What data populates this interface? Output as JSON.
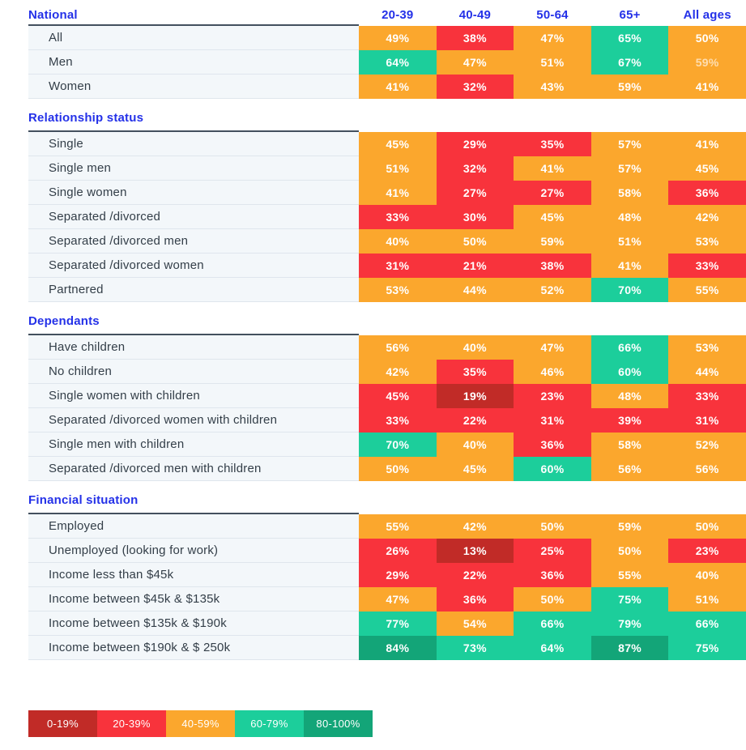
{
  "chart_data": {
    "type": "heatmap",
    "columns": [
      "20-39",
      "40-49",
      "50-64",
      "65+",
      "All ages"
    ],
    "value_unit": "%",
    "bands": [
      {
        "label": "0-19%",
        "max": 19,
        "color": "#C12B27"
      },
      {
        "label": "20-39%",
        "max": 39,
        "color": "#F8333C"
      },
      {
        "label": "40-59%",
        "max": 59,
        "color": "#FBA72D"
      },
      {
        "label": "60-79%",
        "max": 79,
        "color": "#1CCE9B"
      },
      {
        "label": "80-100%",
        "max": 100,
        "color": "#13A578"
      }
    ],
    "sections": [
      {
        "title": "National",
        "rows": [
          {
            "label": "All",
            "values": [
              49,
              38,
              47,
              65,
              50
            ]
          },
          {
            "label": "Men",
            "values": [
              64,
              47,
              51,
              67,
              59
            ],
            "dim": [
              4
            ]
          },
          {
            "label": "Women",
            "values": [
              41,
              32,
              43,
              59,
              41
            ]
          }
        ]
      },
      {
        "title": "Relationship status",
        "rows": [
          {
            "label": "Single",
            "values": [
              45,
              29,
              35,
              57,
              41
            ]
          },
          {
            "label": "Single men",
            "values": [
              51,
              32,
              41,
              57,
              45
            ]
          },
          {
            "label": "Single women",
            "values": [
              41,
              27,
              27,
              58,
              36
            ]
          },
          {
            "label": "Separated /divorced",
            "values": [
              33,
              30,
              45,
              48,
              42
            ]
          },
          {
            "label": "Separated /divorced men",
            "values": [
              40,
              50,
              59,
              51,
              53
            ]
          },
          {
            "label": "Separated /divorced women",
            "values": [
              31,
              21,
              38,
              41,
              33
            ]
          },
          {
            "label": "Partnered",
            "values": [
              53,
              44,
              52,
              70,
              55
            ]
          }
        ]
      },
      {
        "title": "Dependants",
        "rows": [
          {
            "label": "Have children",
            "values": [
              56,
              40,
              47,
              66,
              53
            ]
          },
          {
            "label": "No children",
            "values": [
              42,
              35,
              46,
              60,
              44
            ]
          },
          {
            "label": "Single women with children",
            "values": [
              45,
              19,
              23,
              48,
              33
            ],
            "band_overrides": {
              "0": 1
            }
          },
          {
            "label": "Separated /divorced women with children",
            "values": [
              33,
              22,
              31,
              39,
              31
            ]
          },
          {
            "label": "Single men with children",
            "values": [
              70,
              40,
              36,
              58,
              52
            ]
          },
          {
            "label": "Separated /divorced men with children",
            "values": [
              50,
              45,
              60,
              56,
              56
            ]
          }
        ]
      },
      {
        "title": "Financial situation",
        "rows": [
          {
            "label": "Employed",
            "values": [
              55,
              42,
              50,
              59,
              50
            ]
          },
          {
            "label": "Unemployed (looking for work)",
            "values": [
              26,
              13,
              25,
              50,
              23
            ]
          },
          {
            "label": "Income less than $45k",
            "values": [
              29,
              22,
              36,
              55,
              40
            ]
          },
          {
            "label": "Income between $45k & $135k",
            "values": [
              47,
              36,
              50,
              75,
              51
            ]
          },
          {
            "label": "Income between $135k & $190k",
            "values": [
              77,
              54,
              66,
              79,
              66
            ]
          },
          {
            "label": "Income between $190k & $ 250k",
            "values": [
              84,
              73,
              64,
              87,
              75
            ]
          }
        ]
      }
    ],
    "legend": [
      "0-19%",
      "20-39%",
      "40-59%",
      "60-79%",
      "80-100%"
    ]
  },
  "colors": {
    "header_blue": "#2431E8",
    "label_bg": "#F3F7FA",
    "label_text": "#333E48",
    "row_separator": "#DFE6ED",
    "section_topline": "#43505E",
    "cell_text": "#FFFFFF"
  }
}
